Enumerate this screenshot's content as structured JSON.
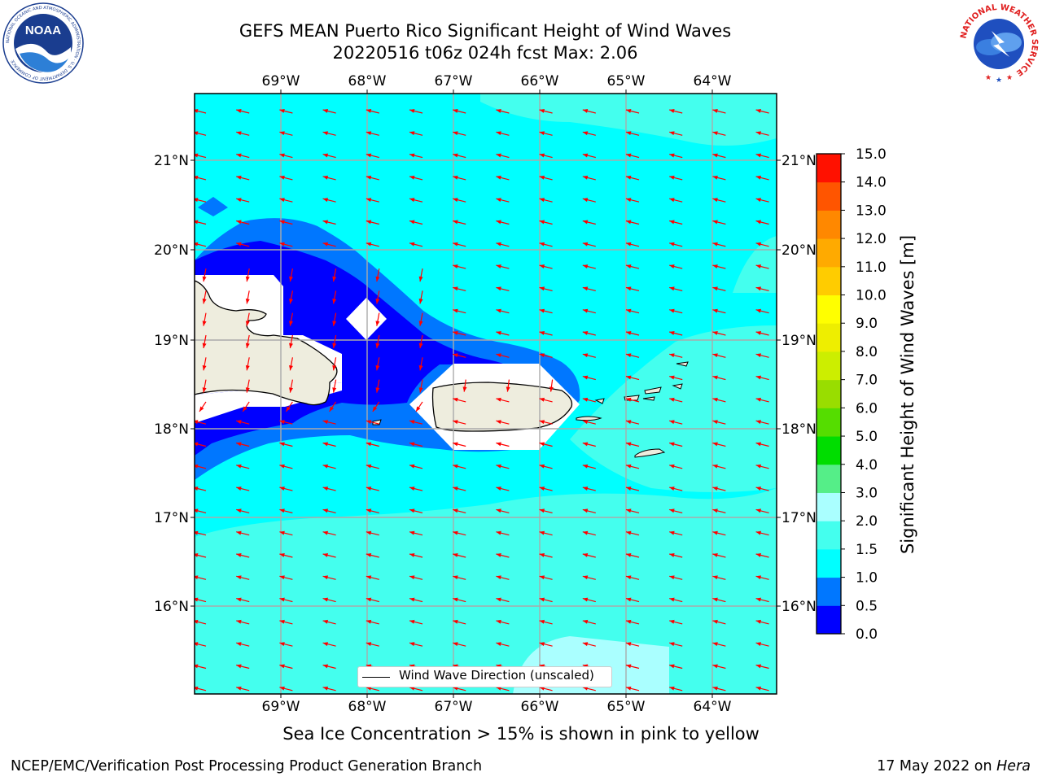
{
  "header": {
    "title_line1": "GEFS MEAN Puerto Rico Significant Height of Wind Waves",
    "title_line2": "20220516 t06z 024h fcst   Max: 2.06",
    "noaa_logo_text": "NOAA",
    "noaa_ring_text": "NATIONAL OCEANIC AND ATMOSPHERIC ADMINISTRATION · U.S. DEPARTMENT OF COMMERCE",
    "nws_ring_text": "NATIONAL WEATHER SERVICE"
  },
  "map": {
    "lon_labels": [
      "69°W",
      "68°W",
      "67°W",
      "66°W",
      "65°W",
      "64°W"
    ],
    "lat_labels": [
      "21°N",
      "20°N",
      "19°N",
      "18°N",
      "17°N",
      "16°N"
    ],
    "legend_label": "Wind Wave Direction (unscaled)",
    "ocean_fill_color": "#00ffff",
    "land_color": "#eeedde",
    "arrow_color": "#ff0000",
    "max_value_m": 2.06
  },
  "colorbar": {
    "label": "Significant Height of Wind Waves [m]",
    "tick_labels": [
      "0.0",
      "0.5",
      "1.0",
      "1.5",
      "2.0",
      "3.0",
      "4.0",
      "5.0",
      "6.0",
      "7.0",
      "8.0",
      "9.0",
      "10.0",
      "11.0",
      "12.0",
      "13.0",
      "14.0",
      "15.0"
    ],
    "colors": [
      "#0000ff",
      "#0077ff",
      "#00ffff",
      "#44ffee",
      "#aaffff",
      "#55ee88",
      "#00dd00",
      "#55dd00",
      "#99dd00",
      "#ccee00",
      "#eeee00",
      "#ffff00",
      "#ffcc00",
      "#ffaa00",
      "#ff8800",
      "#ff5500",
      "#ff1100"
    ]
  },
  "footer": {
    "note": "Sea Ice Concentration > 15% is shown in pink to yellow",
    "left": "NCEP/EMC/Verification Post Processing Product Generation Branch",
    "right_date": "17 May 2022 on ",
    "right_host": "Hera"
  }
}
